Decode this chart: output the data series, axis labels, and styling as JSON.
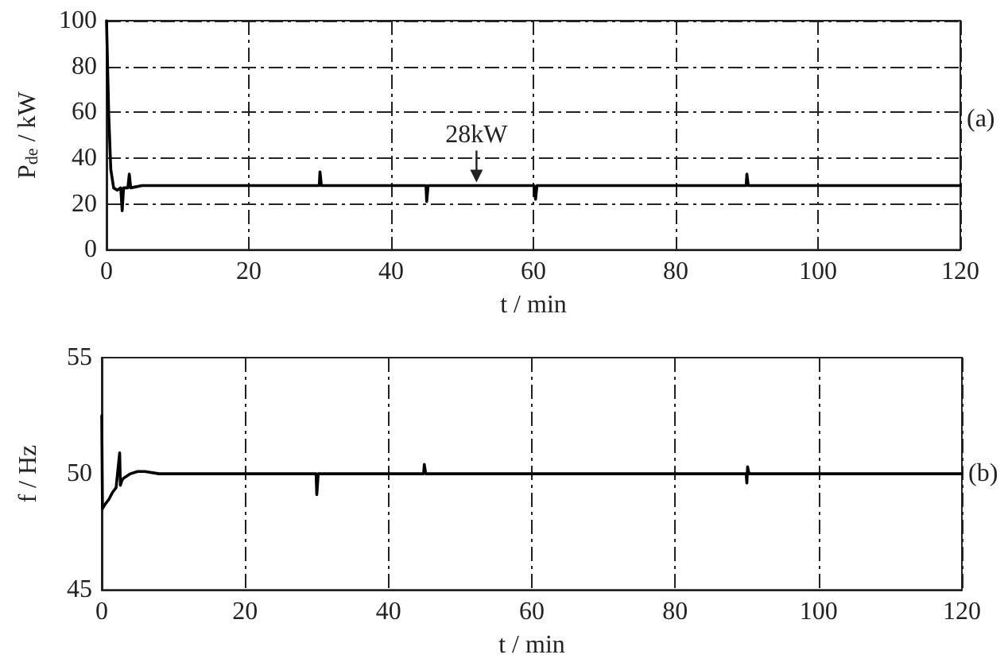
{
  "chart_data": [
    {
      "type": "line",
      "xlabel": "t / min",
      "ylabel": "P$_{de}$ / kW",
      "color": "#000000",
      "line_style": "solid",
      "grid": true,
      "x": [
        0,
        0.3,
        0.6,
        1,
        1.5,
        2,
        2.2,
        2.4,
        3,
        3.2,
        3.4,
        5,
        10,
        15,
        20,
        25,
        29.9,
        30,
        30.2,
        35,
        40,
        44.9,
        45,
        45.2,
        50,
        55,
        60.1,
        60.3,
        60.5,
        70,
        80,
        89.9,
        90,
        90.2,
        100,
        110,
        120
      ],
      "values": [
        100,
        60,
        35,
        27,
        26,
        27,
        17,
        27,
        27,
        33,
        27,
        28,
        28,
        28,
        28,
        28,
        28,
        34,
        28,
        28,
        28,
        28,
        21,
        28,
        28,
        28,
        28,
        22,
        28,
        28,
        28,
        28,
        33,
        28,
        28,
        28,
        28
      ],
      "xlim": [
        0,
        120
      ],
      "xticks": [
        0,
        20,
        40,
        60,
        80,
        100,
        120
      ],
      "ylim": [
        0,
        100
      ],
      "yticks": [
        0,
        20,
        40,
        60,
        80,
        100
      ],
      "annotations": [
        {
          "text": "28kW",
          "x": 52,
          "y": 28
        },
        "(a)"
      ]
    },
    {
      "type": "line",
      "xlabel": "t / min",
      "ylabel": "f / Hz",
      "color": "#000000",
      "line_style": "solid",
      "grid": "x",
      "x": [
        0,
        0.1,
        0.5,
        1,
        1.5,
        2,
        2.5,
        2.6,
        2.8,
        3,
        4,
        5,
        6,
        8,
        10,
        20,
        29.9,
        30,
        30.2,
        40,
        44.9,
        45,
        45.2,
        60,
        80,
        89.9,
        90,
        90.1,
        90.3,
        100,
        120
      ],
      "values": [
        52.5,
        48.5,
        48.7,
        48.9,
        49.2,
        49.4,
        50.9,
        49.5,
        49.7,
        49.8,
        50,
        50.1,
        50.1,
        50,
        50,
        50,
        50,
        49.1,
        50,
        50,
        50,
        50.4,
        50,
        50,
        50,
        50,
        49.6,
        50.3,
        50,
        50,
        50
      ],
      "xlim": [
        0,
        120
      ],
      "xticks": [
        0,
        20,
        40,
        60,
        80,
        100,
        120
      ],
      "ylim": [
        45,
        55
      ],
      "yticks": [
        45,
        50,
        55
      ],
      "annotations": [
        "(b)"
      ]
    }
  ]
}
